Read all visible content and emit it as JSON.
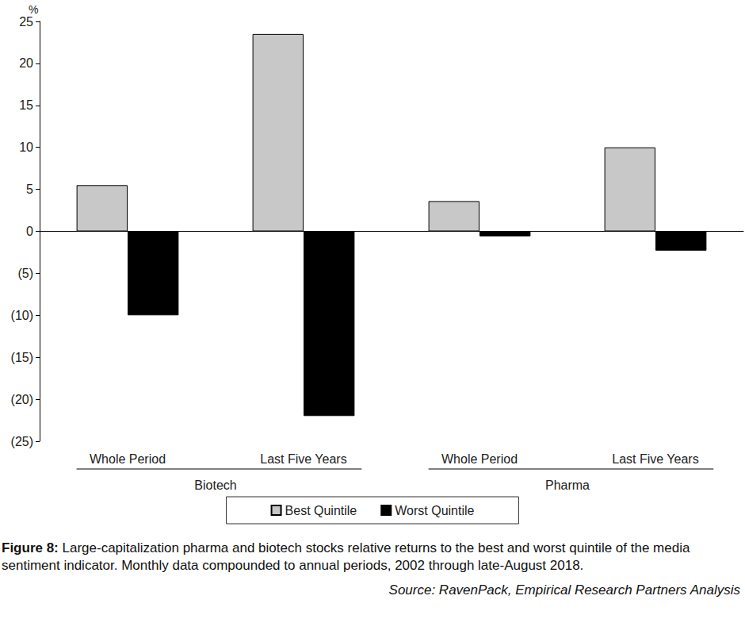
{
  "chart_data": {
    "type": "bar",
    "y_label": "%",
    "categories": [
      "Whole Period",
      "Last Five Years",
      "Whole Period",
      "Last Five Years"
    ],
    "groups": [
      "Biotech",
      "Biotech",
      "Pharma",
      "Pharma"
    ],
    "series": [
      {
        "name": "Best Quintile",
        "color": "#c8c8c8",
        "values": [
          5.5,
          23.5,
          3.6,
          10
        ]
      },
      {
        "name": "Worst Quintile",
        "color": "#000000",
        "values": [
          -10,
          -22,
          -0.6,
          -2.3
        ]
      }
    ],
    "ylim": [
      -25,
      25
    ],
    "yticks": [
      {
        "value": -25,
        "label": "(25)"
      },
      {
        "value": -20,
        "label": "(20)"
      },
      {
        "value": -15,
        "label": "(15)"
      },
      {
        "value": -10,
        "label": "(10)"
      },
      {
        "value": -5,
        "label": "(5)"
      },
      0,
      5,
      10,
      15,
      20,
      25
    ],
    "grid": false,
    "legend": "bottom",
    "caption": {
      "label": "Figure 8:",
      "text": "Large-capitalization pharma and biotech stocks relative returns to the best and worst quintile of the media sentiment indicator. Monthly data compounded to annual periods, 2002 through late-August 2018."
    },
    "source": "Source: RavenPack, Empirical Research Partners Analysis"
  }
}
